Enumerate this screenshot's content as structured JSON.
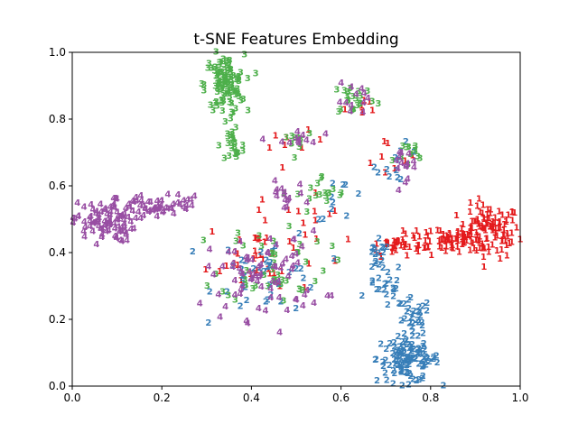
{
  "chart_data": {
    "type": "scatter",
    "title": "t-SNE Features Embedding",
    "xlabel": "",
    "ylabel": "",
    "xlim": [
      0.0,
      1.0
    ],
    "ylim": [
      0.0,
      1.0
    ],
    "x_ticks": [
      "0.0",
      "0.2",
      "0.4",
      "0.6",
      "0.8",
      "1.0"
    ],
    "y_ticks": [
      "0.0",
      "0.2",
      "0.4",
      "0.6",
      "0.8",
      "1.0"
    ],
    "grid": false,
    "legend": "none",
    "marker_style": "class digit as text glyph",
    "series": [
      {
        "label": "1",
        "color": "#e41a1c",
        "clusters": [
          {
            "cx": 0.93,
            "cy": 0.46,
            "sx": 0.035,
            "sy": 0.04,
            "n": 110
          },
          {
            "cx": 0.83,
            "cy": 0.44,
            "sx": 0.04,
            "sy": 0.022,
            "n": 55
          },
          {
            "cx": 0.72,
            "cy": 0.42,
            "sx": 0.03,
            "sy": 0.015,
            "n": 35
          },
          {
            "cx": 0.42,
            "cy": 0.39,
            "sx": 0.06,
            "sy": 0.06,
            "n": 40
          },
          {
            "cx": 0.54,
            "cy": 0.55,
            "sx": 0.04,
            "sy": 0.03,
            "n": 8
          },
          {
            "cx": 0.71,
            "cy": 0.68,
            "sx": 0.03,
            "sy": 0.03,
            "n": 8
          },
          {
            "cx": 0.5,
            "cy": 0.72,
            "sx": 0.03,
            "sy": 0.02,
            "n": 8
          },
          {
            "cx": 0.64,
            "cy": 0.83,
            "sx": 0.03,
            "sy": 0.03,
            "n": 6
          }
        ]
      },
      {
        "label": "2",
        "color": "#377eb8",
        "clusters": [
          {
            "cx": 0.75,
            "cy": 0.08,
            "sx": 0.035,
            "sy": 0.035,
            "n": 110
          },
          {
            "cx": 0.76,
            "cy": 0.2,
            "sx": 0.02,
            "sy": 0.03,
            "n": 25
          },
          {
            "cx": 0.7,
            "cy": 0.3,
            "sx": 0.02,
            "sy": 0.035,
            "n": 22
          },
          {
            "cx": 0.68,
            "cy": 0.38,
            "sx": 0.015,
            "sy": 0.025,
            "n": 15
          },
          {
            "cx": 0.44,
            "cy": 0.34,
            "sx": 0.06,
            "sy": 0.06,
            "n": 40
          },
          {
            "cx": 0.73,
            "cy": 0.66,
            "sx": 0.025,
            "sy": 0.03,
            "n": 12
          },
          {
            "cx": 0.6,
            "cy": 0.56,
            "sx": 0.03,
            "sy": 0.03,
            "n": 10
          }
        ]
      },
      {
        "label": "3",
        "color": "#4daf4a",
        "clusters": [
          {
            "cx": 0.34,
            "cy": 0.9,
            "sx": 0.022,
            "sy": 0.045,
            "n": 110
          },
          {
            "cx": 0.36,
            "cy": 0.72,
            "sx": 0.012,
            "sy": 0.04,
            "n": 22
          },
          {
            "cx": 0.63,
            "cy": 0.86,
            "sx": 0.025,
            "sy": 0.025,
            "n": 22
          },
          {
            "cx": 0.5,
            "cy": 0.74,
            "sx": 0.02,
            "sy": 0.02,
            "n": 10
          },
          {
            "cx": 0.56,
            "cy": 0.57,
            "sx": 0.03,
            "sy": 0.03,
            "n": 18
          },
          {
            "cx": 0.45,
            "cy": 0.37,
            "sx": 0.06,
            "sy": 0.06,
            "n": 45
          },
          {
            "cx": 0.74,
            "cy": 0.69,
            "sx": 0.025,
            "sy": 0.025,
            "n": 12
          }
        ]
      },
      {
        "label": "4",
        "color": "#984ea3",
        "clusters": [
          {
            "cx": 0.07,
            "cy": 0.49,
            "sx": 0.035,
            "sy": 0.03,
            "n": 90
          },
          {
            "cx": 0.18,
            "cy": 0.535,
            "sx": 0.04,
            "sy": 0.018,
            "n": 45
          },
          {
            "cx": 0.26,
            "cy": 0.54,
            "sx": 0.015,
            "sy": 0.015,
            "n": 8
          },
          {
            "cx": 0.43,
            "cy": 0.33,
            "sx": 0.065,
            "sy": 0.065,
            "n": 75
          },
          {
            "cx": 0.47,
            "cy": 0.57,
            "sx": 0.025,
            "sy": 0.02,
            "n": 15
          },
          {
            "cx": 0.5,
            "cy": 0.73,
            "sx": 0.025,
            "sy": 0.02,
            "n": 12
          },
          {
            "cx": 0.74,
            "cy": 0.68,
            "sx": 0.025,
            "sy": 0.03,
            "n": 15
          },
          {
            "cx": 0.64,
            "cy": 0.85,
            "sx": 0.025,
            "sy": 0.025,
            "n": 12
          }
        ]
      }
    ]
  }
}
